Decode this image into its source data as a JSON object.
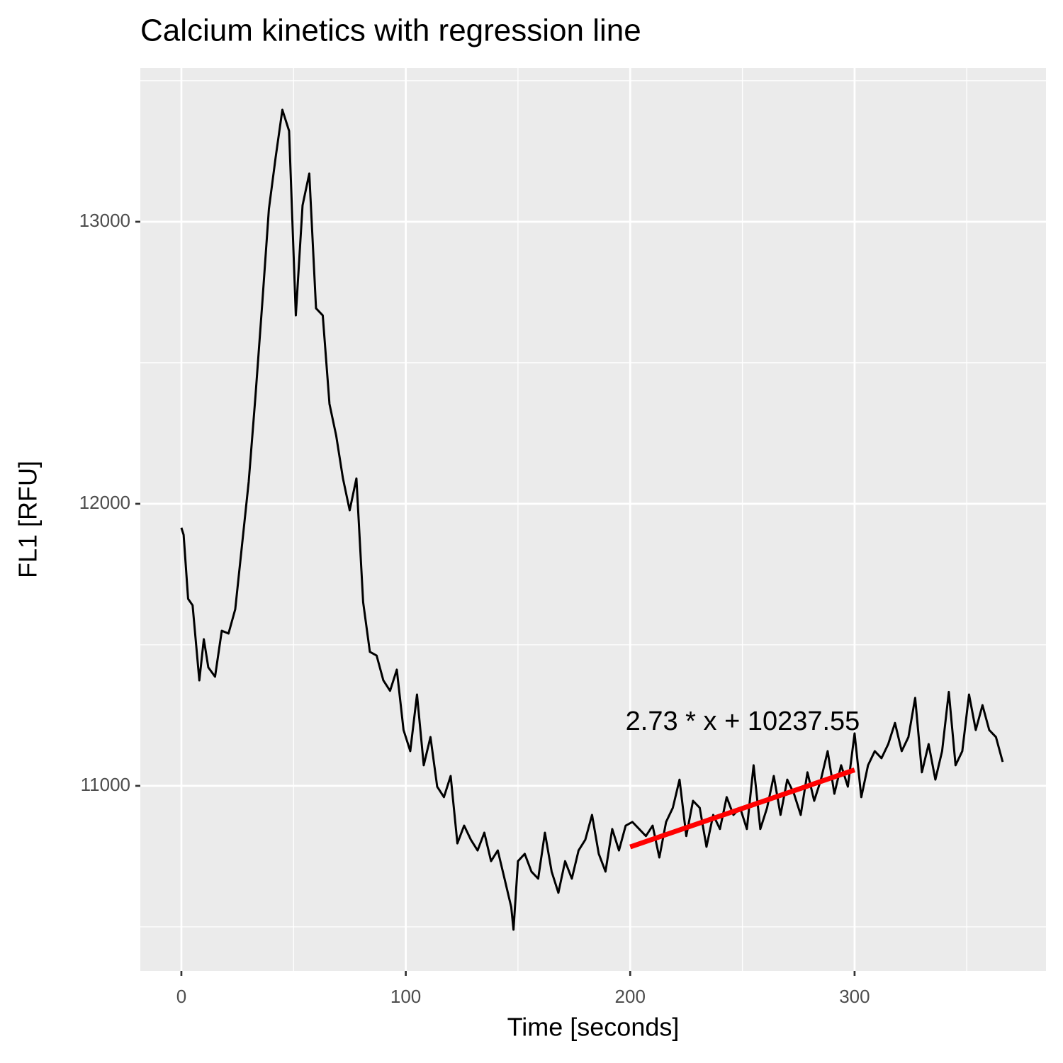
{
  "chart_data": {
    "type": "line",
    "title": "Calcium kinetics with regression line",
    "x_label": "Time [seconds]",
    "y_label": "FL1 [RFU]",
    "annotation": "2.73 * x + 10237.55",
    "xlim": [
      -18.3,
      385.3
    ],
    "ylim": [
      10344,
      13545
    ],
    "xticks": [
      0,
      100,
      200,
      300
    ],
    "yticks": [
      11000,
      12000,
      13000
    ],
    "xminor": [
      50,
      150,
      250,
      350
    ],
    "yminor": [
      10500,
      11500,
      12500,
      13500
    ],
    "grid": true,
    "series": [
      {
        "color": "#000000",
        "x": [
          0,
          1,
          3,
          5,
          8,
          10,
          12,
          15,
          18,
          21,
          24,
          27,
          30,
          33,
          36,
          39,
          42,
          45,
          48,
          51,
          54,
          57,
          60,
          63,
          66,
          69,
          72,
          75,
          78,
          81,
          84,
          87,
          90,
          93,
          96,
          99,
          102,
          105,
          108,
          111,
          114,
          117,
          120,
          123,
          126,
          129,
          132,
          135,
          138,
          141,
          144,
          147,
          148,
          150,
          153,
          156,
          159,
          162,
          165,
          168,
          171,
          174,
          177,
          180,
          183,
          186,
          189,
          192,
          195,
          198,
          201,
          204,
          207,
          210,
          213,
          216,
          219,
          222,
          225,
          228,
          231,
          234,
          237,
          240,
          243,
          246,
          249,
          252,
          255,
          258,
          261,
          264,
          267,
          270,
          273,
          276,
          279,
          282,
          285,
          288,
          291,
          294,
          297,
          300,
          303,
          306,
          309,
          312,
          315,
          318,
          321,
          324,
          327,
          330,
          333,
          336,
          339,
          342,
          345,
          348,
          351,
          354,
          357,
          360,
          363,
          366
        ],
        "values": [
          11915,
          11890,
          11663,
          11640,
          11374,
          11520,
          11420,
          11387,
          11550,
          11540,
          11626,
          11852,
          12078,
          12380,
          12706,
          13045,
          13228,
          13397,
          13322,
          12668,
          13058,
          13171,
          12693,
          12668,
          12354,
          12241,
          12090,
          11977,
          12090,
          11651,
          11475,
          11462,
          11374,
          11337,
          11412,
          11198,
          11123,
          11324,
          11073,
          11173,
          10997,
          10960,
          11035,
          10796,
          10859,
          10809,
          10771,
          10834,
          10733,
          10771,
          10671,
          10570,
          10490,
          10733,
          10759,
          10696,
          10671,
          10834,
          10696,
          10621,
          10733,
          10671,
          10771,
          10809,
          10897,
          10759,
          10696,
          10847,
          10771,
          10859,
          10872,
          10847,
          10822,
          10859,
          10746,
          10872,
          10922,
          11022,
          10822,
          10947,
          10922,
          10784,
          10897,
          10847,
          10960,
          10897,
          10922,
          10847,
          11073,
          10847,
          10922,
          11035,
          10897,
          11022,
          10972,
          10897,
          11048,
          10947,
          11022,
          11123,
          10972,
          11073,
          10997,
          11186,
          10960,
          11073,
          11123,
          11098,
          11148,
          11223,
          11123,
          11173,
          11312,
          11048,
          11148,
          11022,
          11123,
          11333,
          11073,
          11123,
          11324,
          11198,
          11286,
          11198,
          11173,
          11085
        ]
      },
      {
        "color": "#ff0000",
        "x": [
          200,
          300
        ],
        "values": [
          10783.55,
          11056.55
        ]
      }
    ]
  }
}
